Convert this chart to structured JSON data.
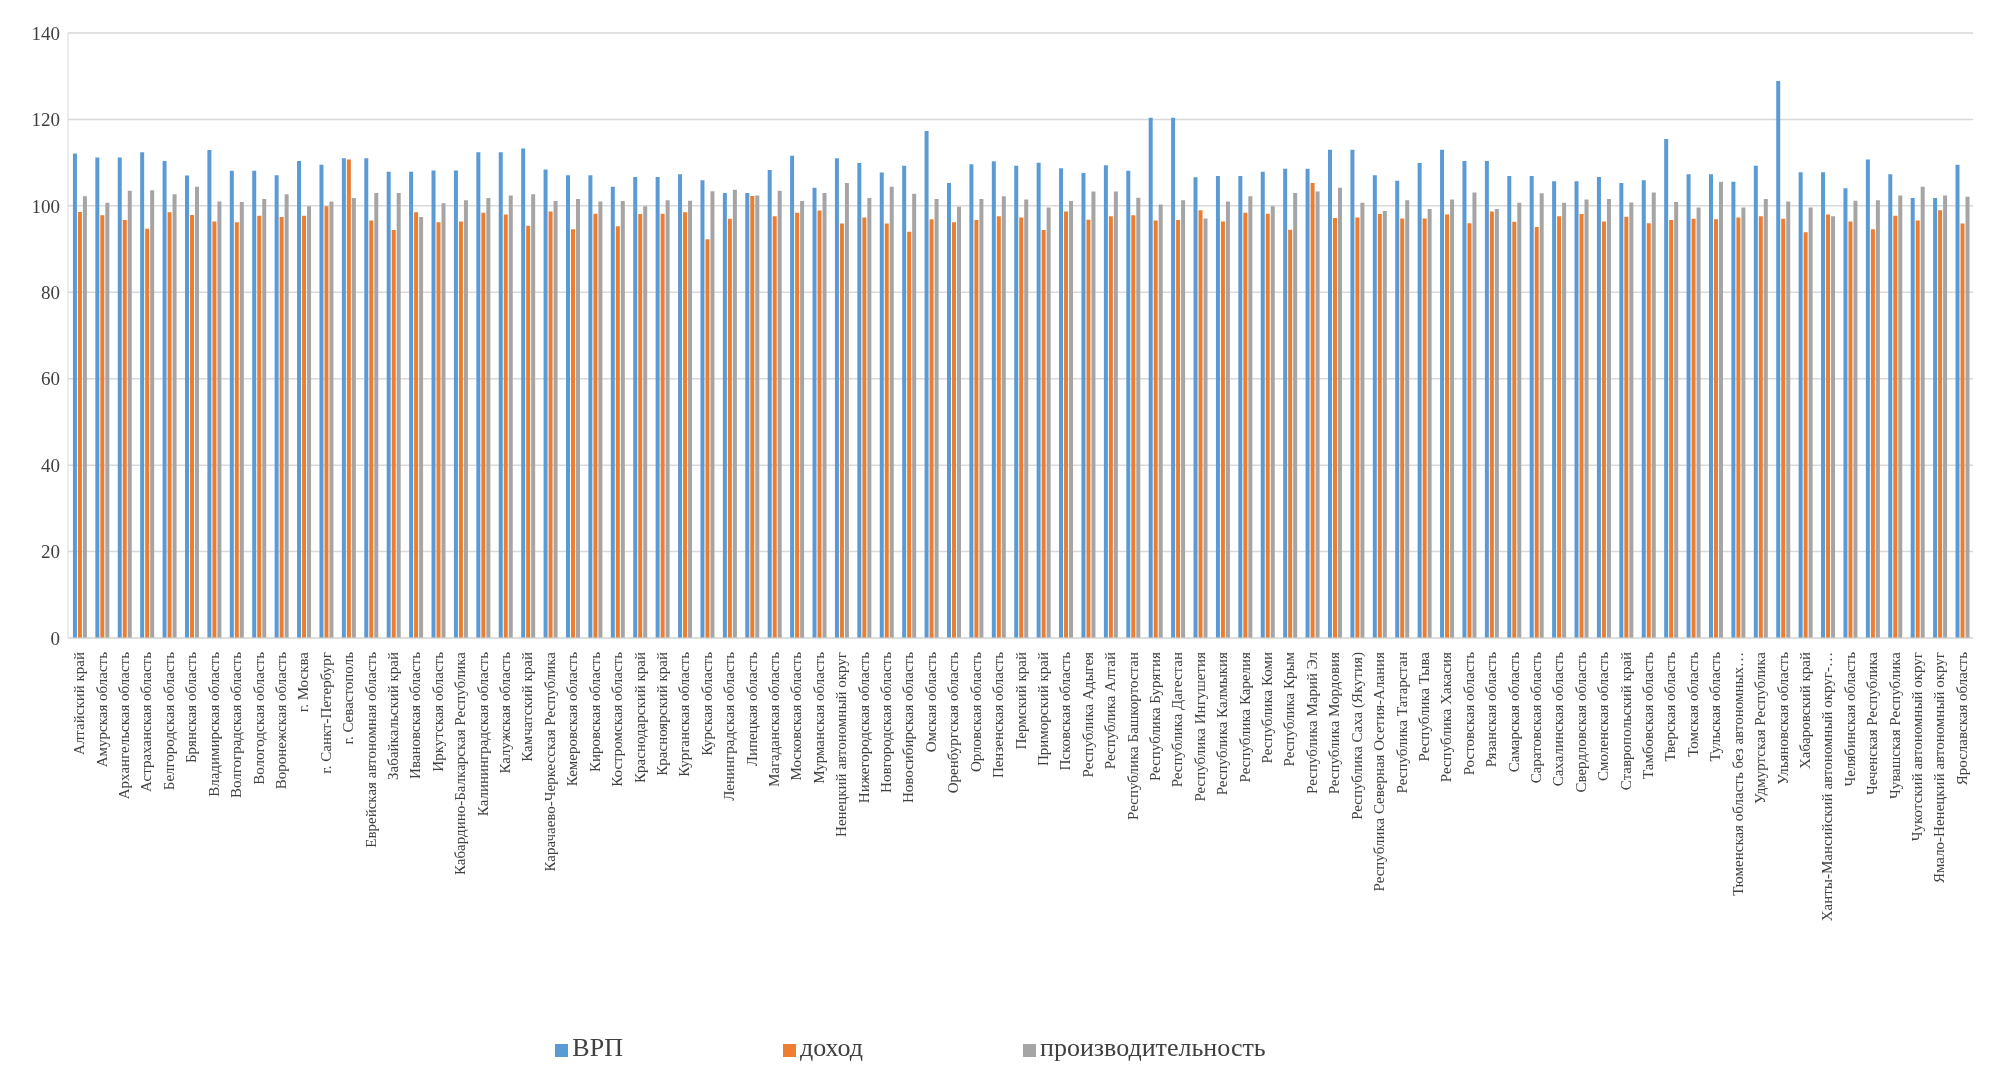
{
  "chart_data": {
    "type": "bar",
    "categories": [
      "Алтайский край",
      "Амурская область",
      "Архангельская область",
      "Астраханская область",
      "Белгородская область",
      "Брянская область",
      "Владимирская область",
      "Волгоградская область",
      "Вологодская область",
      "Воронежская область",
      "г. Москва",
      "г. Санкт-Петербург",
      "г. Севастополь",
      "Еврейская автономная область",
      "Забайкальский край",
      "Ивановская область",
      "Иркутская область",
      "Кабардино-Балкарская Республика",
      "Калининградская область",
      "Калужская область",
      "Камчатский край",
      "Карачаево-Черкесская Республика",
      "Кемеровская область",
      "Кировская область",
      "Костромская область",
      "Краснодарский край",
      "Красноярский край",
      "Курганская область",
      "Курская область",
      "Ленинградская область",
      "Липецкая область",
      "Магаданская область",
      "Московская область",
      "Мурманская область",
      "Ненецкий автономный округ",
      "Нижегородская область",
      "Новгородская область",
      "Новосибирская область",
      "Омская область",
      "Оренбургская область",
      "Орловская область",
      "Пензенская область",
      "Пермский край",
      "Приморский край",
      "Псковская область",
      "Республика Адыгея",
      "Республика Алтай",
      "Республика Башкортостан",
      "Республика Бурятия",
      "Республика Дагестан",
      "Республика Ингушетия",
      "Республика Калмыкия",
      "Республика Карелия",
      "Республика Коми",
      "Республика Крым",
      "Республика Марий Эл",
      "Республика Мордовия",
      "Республика Саха (Якутия)",
      "Республика Северная Осетия-Алания",
      "Республика Татарстан",
      "Республика Тыва",
      "Республика Хакасия",
      "Ростовская область",
      "Рязанская область",
      "Самарская область",
      "Саратовская область",
      "Сахалинская область",
      "Свердловская область",
      "Смоленская область",
      "Ставропольский край",
      "Тамбовская область",
      "Тверская область",
      "Томская область",
      "Тульская область",
      "Тюменская область без автономных…",
      "Удмуртская Республика",
      "Ульяновская область",
      "Хабаровский край",
      "Ханты-Мансийский автономный округ-…",
      "Челябинская область",
      "Чеченская Республика",
      "Чувашская Республика",
      "Чукотский автономный округ",
      "Ямало-Ненецкий автономный округ",
      "Ярославская область"
    ],
    "series": [
      {
        "name": "ВРП",
        "color": "#5b9bd5",
        "values": [
          112.1,
          111.2,
          111.2,
          112.4,
          110.4,
          107.0,
          112.9,
          108.1,
          108.1,
          107.1,
          110.4,
          109.5,
          111.0,
          111.0,
          107.9,
          107.9,
          108.2,
          108.2,
          112.4,
          112.4,
          113.3,
          108.4,
          107.1,
          107.1,
          104.4,
          106.7,
          106.7,
          107.3,
          105.9,
          103.0,
          103.0,
          108.3,
          111.6,
          104.2,
          111.0,
          109.9,
          107.7,
          109.3,
          117.3,
          105.3,
          109.6,
          110.3,
          109.3,
          110.0,
          108.7,
          107.6,
          109.4,
          108.1,
          120.4,
          120.4,
          106.6,
          106.9,
          106.9,
          107.9,
          108.6,
          108.6,
          113.0,
          113.0,
          107.1,
          105.8,
          109.9,
          113.0,
          110.4,
          110.4,
          106.9,
          106.9,
          105.7,
          105.7,
          106.7,
          105.3,
          105.9,
          115.5,
          107.3,
          107.3,
          105.6,
          109.3,
          128.9,
          107.8,
          107.8,
          104.1,
          110.7,
          107.3,
          101.8,
          101.8,
          109.5
        ]
      },
      {
        "name": "доход",
        "color": "#ed7d31",
        "values": [
          98.6,
          97.8,
          96.7,
          94.7,
          98.5,
          97.9,
          96.4,
          96.2,
          97.7,
          97.4,
          97.7,
          99.9,
          110.7,
          96.6,
          94.4,
          98.5,
          96.2,
          96.4,
          98.4,
          98.0,
          95.4,
          98.7,
          94.6,
          98.2,
          95.3,
          98.1,
          98.2,
          98.5,
          92.3,
          97.0,
          102.3,
          97.6,
          98.4,
          98.9,
          95.9,
          97.3,
          95.9,
          94.0,
          96.9,
          96.2,
          96.7,
          97.6,
          97.3,
          94.4,
          98.7,
          96.8,
          97.6,
          97.8,
          96.6,
          96.7,
          99.0,
          96.4,
          98.4,
          98.2,
          94.5,
          105.3,
          97.2,
          97.3,
          98.1,
          97.1,
          97.1,
          98.0,
          96.0,
          98.7,
          96.3,
          95.1,
          97.6,
          98.1,
          96.4,
          97.5,
          96.0,
          96.7,
          97.0,
          96.9,
          97.3,
          97.6,
          97.0,
          93.9,
          98.0,
          96.4,
          94.6,
          97.7,
          96.6,
          99.0,
          95.9
        ]
      },
      {
        "name": "производительность",
        "color": "#a5a5a5",
        "values": [
          102.2,
          100.7,
          103.5,
          103.6,
          102.7,
          104.4,
          101.0,
          100.9,
          101.6,
          102.7,
          99.9,
          101.0,
          101.8,
          103.0,
          103.0,
          97.4,
          100.6,
          101.3,
          101.8,
          102.4,
          102.7,
          101.1,
          101.6,
          101.0,
          101.1,
          99.9,
          101.3,
          101.2,
          103.4,
          103.7,
          102.4,
          103.5,
          101.1,
          103.0,
          105.3,
          101.8,
          104.4,
          102.8,
          101.6,
          99.8,
          101.6,
          102.2,
          101.5,
          99.6,
          101.1,
          103.3,
          103.3,
          101.9,
          100.3,
          101.3,
          97.1,
          101.0,
          102.2,
          99.9,
          103.0,
          103.3,
          104.2,
          100.7,
          98.8,
          101.3,
          99.3,
          101.5,
          103.1,
          99.3,
          100.7,
          102.9,
          100.7,
          101.5,
          101.6,
          100.8,
          103.1,
          100.9,
          99.6,
          105.6,
          99.6,
          101.6,
          101.0,
          99.6,
          97.6,
          101.2,
          101.3,
          102.4,
          104.4,
          102.4,
          102.1
        ]
      }
    ],
    "ylim": [
      0,
      140
    ],
    "yticks": [
      0,
      20,
      40,
      60,
      80,
      100,
      120,
      140
    ],
    "grid": "y",
    "legend": "bottom"
  }
}
